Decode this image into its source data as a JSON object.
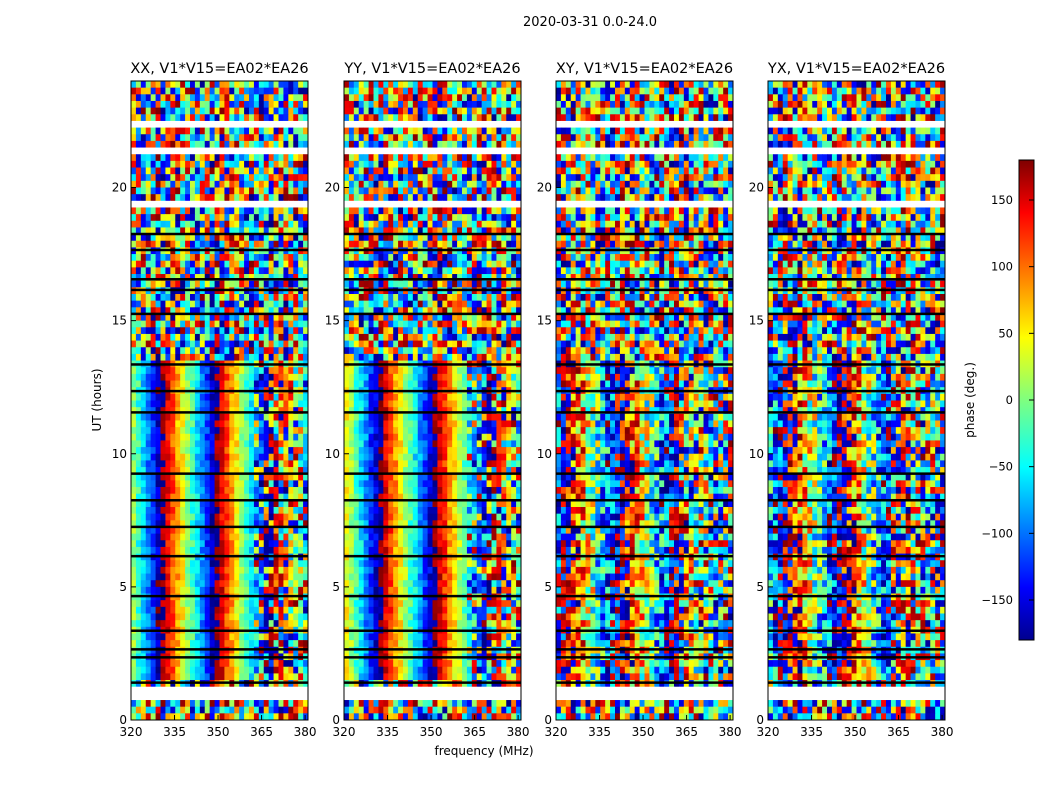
{
  "figure": {
    "suptitle": "2020-03-31 0.0-24.0",
    "xlabel": "frequency (MHz)",
    "ylabel": "UT (hours)",
    "colorbar_label": "phase (deg.)"
  },
  "chart_data": {
    "type": "heatmap",
    "title": "2020-03-31 0.0-24.0",
    "xlabel": "frequency (MHz)",
    "ylabel": "UT (hours)",
    "xlim": [
      320,
      381
    ],
    "ylim": [
      0,
      24
    ],
    "xticks": [
      "320",
      "335",
      "350",
      "365",
      "380"
    ],
    "xtick_values": [
      320,
      335,
      350,
      365,
      380
    ],
    "yticks": [
      "0",
      "5",
      "10",
      "15",
      "20"
    ],
    "ytick_values": [
      0,
      5,
      10,
      15,
      20
    ],
    "colorbar": {
      "label": "phase (deg.)",
      "range": [
        -180,
        180
      ],
      "ticks": [
        "150",
        "100",
        "50",
        "0",
        "−50",
        "−100",
        "−150"
      ],
      "tick_values": [
        150,
        100,
        50,
        0,
        -50,
        -100,
        -150
      ],
      "colormap": "jet"
    },
    "panels": [
      {
        "title": "XX, V1*V15=EA02*EA26",
        "phase_center_mhz": 340,
        "slope": 1.0,
        "noise": 0.15
      },
      {
        "title": "YY, V1*V15=EA02*EA26",
        "phase_center_mhz": 342,
        "slope": 1.0,
        "noise": 0.15
      },
      {
        "title": "XY, V1*V15=EA02*EA26",
        "phase_center_mhz": 333,
        "slope": 1.0,
        "noise": 0.55
      },
      {
        "title": "YX, V1*V15=EA02*EA26",
        "phase_center_mhz": 336,
        "slope": 1.0,
        "noise": 0.55
      }
    ],
    "blank_time_ranges_hours": [
      [
        0.8,
        1.2
      ],
      [
        19.3,
        19.6
      ],
      [
        21.3,
        21.5
      ],
      [
        22.3,
        22.5
      ]
    ],
    "dark_flag_times_hours": [
      1.45,
      2.4,
      2.7,
      3.4,
      4.7,
      6.2,
      7.3,
      8.3,
      9.3,
      11.6,
      12.4,
      13.4,
      15.3,
      16.2,
      16.6,
      17.7,
      18.3
    ]
  }
}
